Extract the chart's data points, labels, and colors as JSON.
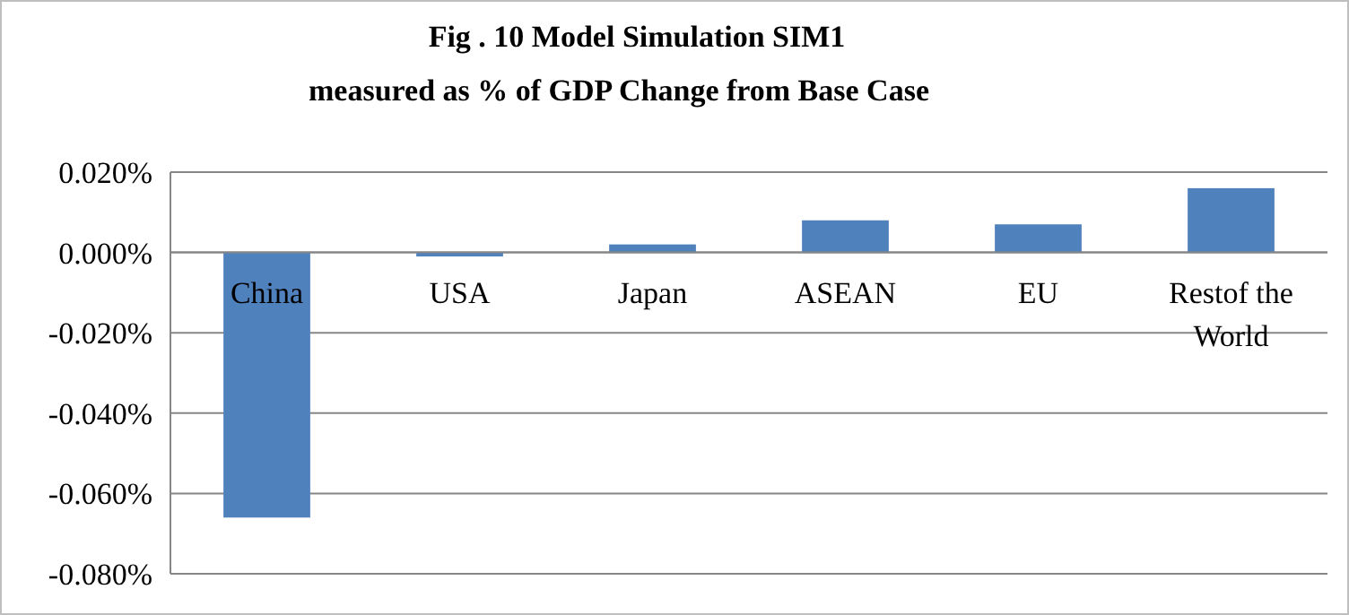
{
  "chart_data": {
    "type": "bar",
    "title": "Fig . 10    Model Simulation  SIM1",
    "subtitle": "measured as  % of GDP Change from Base Case",
    "categories": [
      "China",
      "USA",
      "Japan",
      "ASEAN",
      "EU",
      "Restof the World"
    ],
    "values": [
      -0.066,
      -0.001,
      0.002,
      0.008,
      0.007,
      0.016
    ],
    "color": "#4f81bd",
    "ylim": [
      -0.08,
      0.02
    ],
    "yticks": [
      {
        "value": -0.08,
        "label": "-0.080%"
      },
      {
        "value": -0.06,
        "label": "-0.060%"
      },
      {
        "value": -0.04,
        "label": "-0.040%"
      },
      {
        "value": -0.02,
        "label": "-0.020%"
      },
      {
        "value": 0,
        "label": "0.000%"
      },
      {
        "value": 0.02,
        "label": "0.020%"
      }
    ],
    "grid": "y"
  }
}
